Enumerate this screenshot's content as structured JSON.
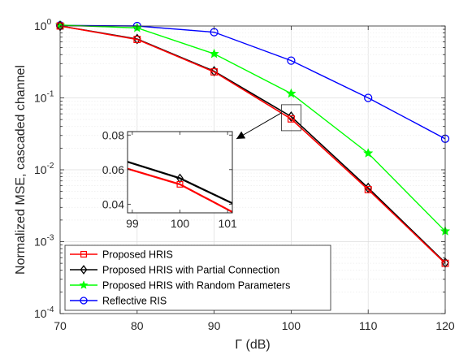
{
  "chart_data": {
    "type": "line",
    "title": "",
    "xlabel": "Γ (dB)",
    "ylabel": "Normalized MSE, cascaded channel",
    "yscale": "log",
    "xlim": [
      70,
      120
    ],
    "ylim": [
      0.0001,
      1
    ],
    "grid": true,
    "legend_placement": "bottom-left",
    "x_ticks": [
      "70",
      "80",
      "90",
      "100",
      "110",
      "120"
    ],
    "y_ticks": [
      {
        "value": 1,
        "base": "10",
        "exp": "0"
      },
      {
        "value": 0.1,
        "base": "10",
        "exp": "-1"
      },
      {
        "value": 0.01,
        "base": "10",
        "exp": "-2"
      },
      {
        "value": 0.001,
        "base": "10",
        "exp": "-3"
      },
      {
        "value": 0.0001,
        "base": "10",
        "exp": "-4"
      }
    ],
    "x": [
      70,
      80,
      90,
      100,
      110,
      120
    ],
    "series": [
      {
        "name": "Proposed HRIS",
        "color": "#ff0000",
        "marker": "square",
        "values": [
          1.0,
          0.65,
          0.23,
          0.051,
          0.0053,
          0.0005
        ]
      },
      {
        "name": "Proposed HRIS with Partial Connection",
        "color": "#000000",
        "marker": "diamond",
        "values": [
          1.0,
          0.66,
          0.235,
          0.055,
          0.0056,
          0.00051
        ]
      },
      {
        "name": "Proposed HRIS with Random Parameters",
        "color": "#00ff00",
        "marker": "star",
        "values": [
          1.03,
          0.94,
          0.41,
          0.115,
          0.017,
          0.0014
        ]
      },
      {
        "name": "Reflective RIS",
        "color": "#0000ff",
        "marker": "circle",
        "values": [
          1.02,
          1.0,
          0.82,
          0.33,
          0.1,
          0.027
        ]
      }
    ],
    "inset": {
      "xlim": [
        98.9,
        101.1
      ],
      "ylim": [
        0.035,
        0.082
      ],
      "x_ticks": [
        "99",
        "100",
        "101"
      ],
      "y_ticks": [
        "0.08",
        "0.06",
        "0.04"
      ],
      "y_tick_values": [
        0.08,
        0.06,
        0.04
      ],
      "x_tick_values": [
        99,
        100,
        101
      ],
      "series": [
        {
          "name": "Proposed HRIS",
          "color": "#ff0000",
          "marker": "square",
          "points": [
            [
              98.9,
              0.0605
            ],
            [
              100,
              0.0515
            ],
            [
              101.1,
              0.0355
            ]
          ]
        },
        {
          "name": "Proposed HRIS with Partial Connection",
          "color": "#000000",
          "marker": "diamond",
          "points": [
            [
              98.9,
              0.0645
            ],
            [
              100,
              0.055
            ],
            [
              101.1,
              0.0405
            ]
          ]
        }
      ]
    }
  }
}
